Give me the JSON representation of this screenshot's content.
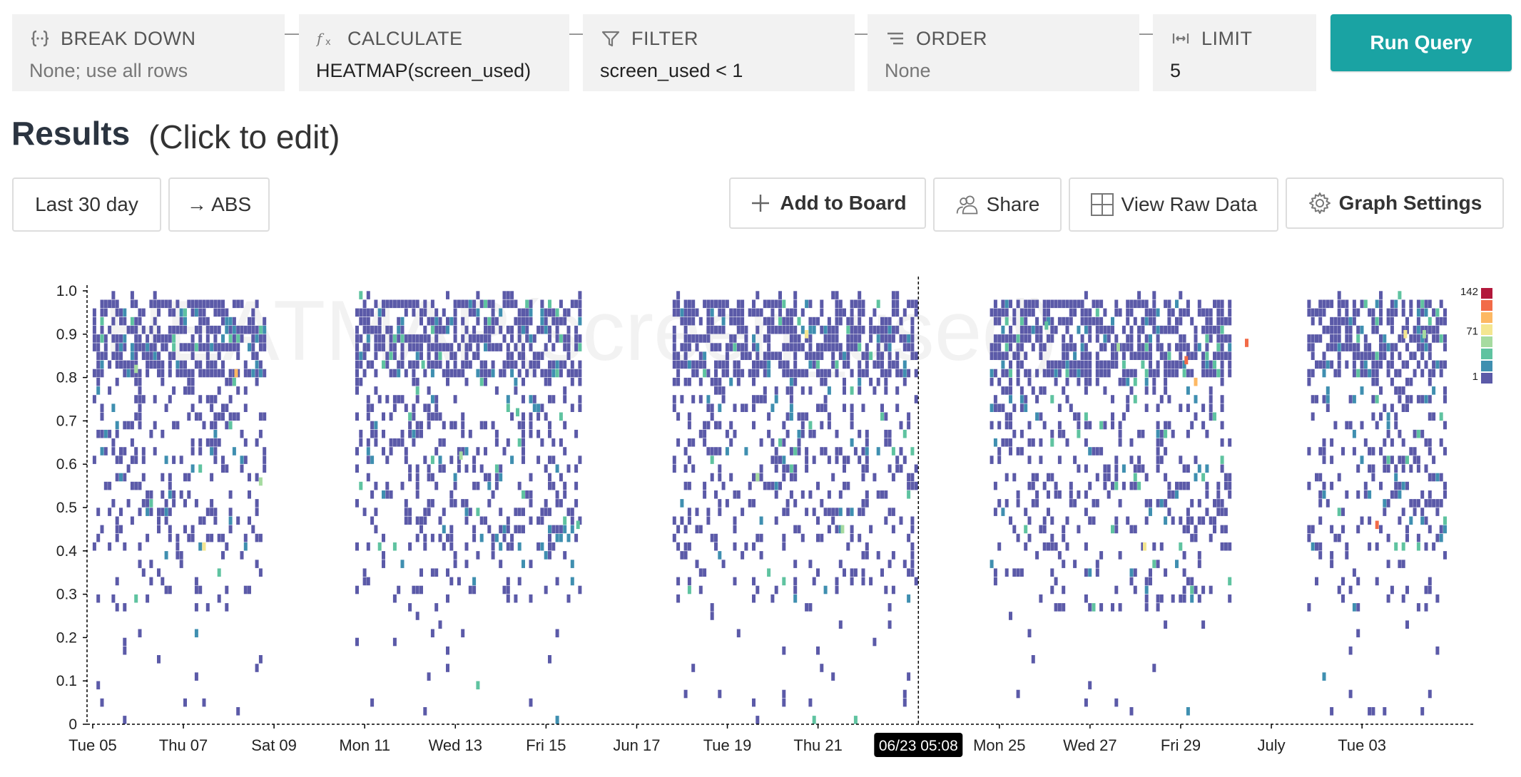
{
  "query": {
    "breakdown": {
      "label": "BREAK DOWN",
      "value": "None; use all rows"
    },
    "calculate": {
      "label": "CALCULATE",
      "value": "HEATMAP(screen_used)"
    },
    "filter": {
      "label": "FILTER",
      "value": "screen_used < 1"
    },
    "order": {
      "label": "ORDER",
      "value": "None"
    },
    "limit": {
      "label": "LIMIT",
      "value": "5"
    },
    "run_label": "Run Query",
    "icons": {
      "breakdown": "braces-icon",
      "calculate": "function-icon",
      "filter": "funnel-icon",
      "order": "sort-lines-icon",
      "limit": "range-icon"
    }
  },
  "results": {
    "title": "Results",
    "subtitle": "(Click to edit)",
    "time_range": "Last 30 day",
    "abs_toggle": "→ ABS",
    "add_to_board": "Add to Board",
    "share": "Share",
    "view_raw": "View Raw Data",
    "graph_settings": "Graph Settings"
  },
  "colors": {
    "accent": "#1aa3a3"
  },
  "chart_data": {
    "type": "heatmap",
    "title": "HEATMAP(screen_used)",
    "ylim": [
      0,
      1.0
    ],
    "y_ticks": [
      "0",
      "0.1",
      "0.2",
      "0.3",
      "0.4",
      "0.5",
      "0.6",
      "0.7",
      "0.8",
      "0.9",
      "1.0"
    ],
    "x_tick_labels": [
      "Tue 05",
      "Thu 07",
      "Sat 09",
      "Mon 11",
      "Wed 13",
      "Fri 15",
      "Jun 17",
      "Tue 19",
      "Thu 21",
      "Mon 25",
      "Wed 27",
      "Fri 29",
      "July",
      "Tue 03"
    ],
    "x_tick_dates": [
      "2018-06-05",
      "2018-06-07",
      "2018-06-09",
      "2018-06-11",
      "2018-06-13",
      "2018-06-15",
      "2018-06-17",
      "2018-06-19",
      "2018-06-21",
      "2018-06-25",
      "2018-06-27",
      "2018-06-29",
      "2018-07-01",
      "2018-07-03"
    ],
    "x_range": [
      "2018-06-04T21:00",
      "2018-07-05T12:00"
    ],
    "cursor_label": "06/23 05:08",
    "cursor_time": "2018-06-23T05:08",
    "legend": {
      "max": "142",
      "mid": "71",
      "min": "1",
      "placement": "right"
    },
    "color_scale": [
      "#5b5aa8",
      "#3f8fb0",
      "#5fc3a0",
      "#a6dba0",
      "#f4e690",
      "#fdb863",
      "#f26b48",
      "#b2183b"
    ],
    "active_periods": [
      [
        "2018-06-05T00:00",
        "2018-06-08T19:00"
      ],
      [
        "2018-06-10T19:00",
        "2018-06-15T19:00"
      ],
      [
        "2018-06-17T19:00",
        "2018-06-23T05:00"
      ],
      [
        "2018-06-24T19:00",
        "2018-06-30T02:00"
      ],
      [
        "2018-07-01T19:00",
        "2018-07-04T21:00"
      ]
    ],
    "hot_cells": [
      [
        "2018-06-05T22:00",
        0.82,
        3
      ],
      [
        "2018-06-06T18:00",
        0.87,
        2
      ],
      [
        "2018-06-07T10:00",
        0.41,
        4
      ],
      [
        "2018-06-08T03:00",
        0.81,
        5
      ],
      [
        "2018-06-08T16:00",
        0.56,
        3
      ],
      [
        "2018-06-12T06:00",
        0.83,
        2
      ],
      [
        "2018-06-13T02:00",
        0.62,
        3
      ],
      [
        "2018-06-14T08:00",
        0.72,
        2
      ],
      [
        "2018-06-15T16:00",
        0.46,
        2
      ],
      [
        "2018-06-19T15:00",
        0.57,
        3
      ],
      [
        "2018-06-20T17:00",
        0.9,
        4
      ],
      [
        "2018-06-21T12:00",
        0.45,
        3
      ],
      [
        "2018-06-26T00:00",
        0.92,
        2
      ],
      [
        "2018-06-27T14:00",
        0.87,
        3
      ],
      [
        "2018-06-28T04:00",
        0.41,
        4
      ],
      [
        "2018-06-29T02:00",
        0.84,
        6
      ],
      [
        "2018-06-29T07:00",
        0.79,
        5
      ],
      [
        "2018-06-30T10:00",
        0.88,
        6
      ],
      [
        "2018-07-03T07:00",
        0.46,
        6
      ],
      [
        "2018-07-03T22:00",
        0.9,
        4
      ],
      [
        "2018-07-04T08:00",
        0.9,
        3
      ]
    ]
  }
}
